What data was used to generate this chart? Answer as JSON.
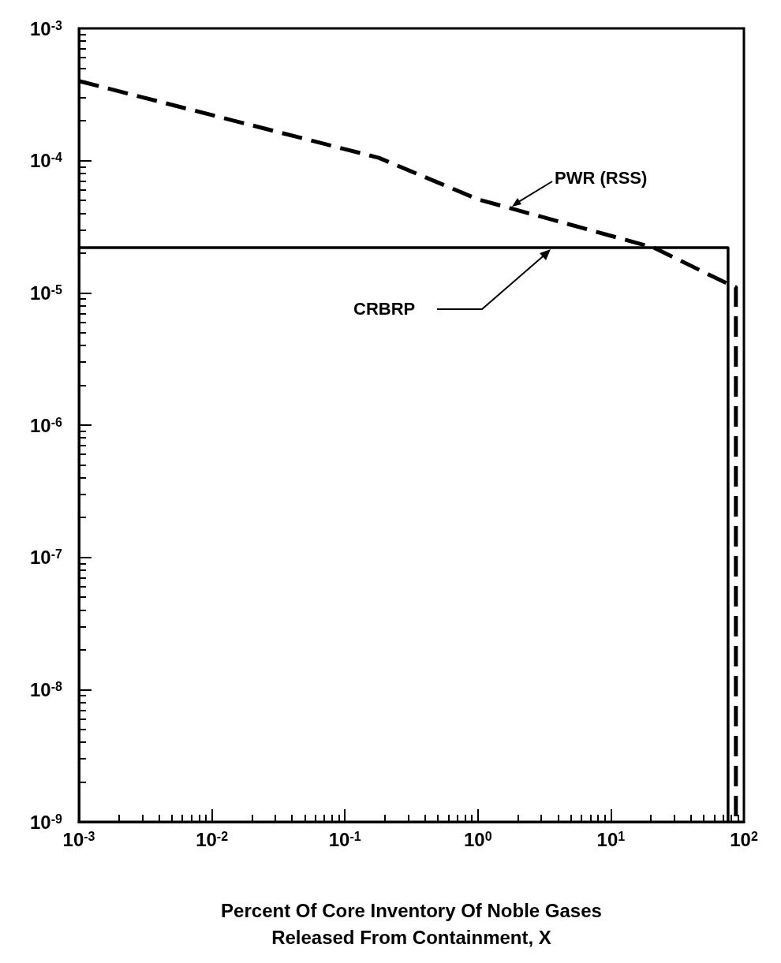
{
  "chart_data": {
    "type": "line",
    "xlabel": "Percent Of Core Inventory Of Noble Gases\nReleased From Containment, X",
    "log": "xy",
    "grid": false,
    "legend": false,
    "marker": "none",
    "xlim": [
      0.001,
      100
    ],
    "ylim": [
      1e-09,
      0.001
    ],
    "xticks": [
      {
        "value": 0.001,
        "label": "10$^{-3}$"
      },
      {
        "value": 0.01,
        "label": "10$^{-2}$"
      },
      {
        "value": 0.1,
        "label": "10$^{-1}$"
      },
      {
        "value": 1,
        "label": "10$^{0}$"
      },
      {
        "value": 10,
        "label": "10$^{1}$"
      },
      {
        "value": 100,
        "label": "10$^{2}$"
      }
    ],
    "yticks": [
      {
        "value": 1e-09,
        "label": "10$^{-9}$"
      },
      {
        "value": 1e-08,
        "label": "10$^{-8}$"
      },
      {
        "value": 1e-07,
        "label": "10$^{-7}$"
      },
      {
        "value": 1e-06,
        "label": "10$^{-6}$"
      },
      {
        "value": 1e-05,
        "label": "10$^{-5}$"
      },
      {
        "value": 0.0001,
        "label": "10$^{-4}$"
      },
      {
        "value": 0.001,
        "label": "10$^{-3}$"
      }
    ],
    "series": [
      {
        "name": "PWR (RSS)",
        "color": "#000000",
        "line_style": "dashed",
        "x": [
          0.001,
          0.18,
          1,
          21,
          72,
          87,
          87
        ],
        "values": [
          0.0004,
          0.000105,
          5.1e-05,
          2.2e-05,
          1.2e-05,
          1.1e-05,
          1e-09
        ]
      },
      {
        "name": "CRBRP",
        "color": "#000000",
        "line_style": "solid",
        "x": [
          0.001,
          76,
          76
        ],
        "values": [
          2.2e-05,
          2.2e-05,
          1e-09
        ]
      }
    ]
  }
}
